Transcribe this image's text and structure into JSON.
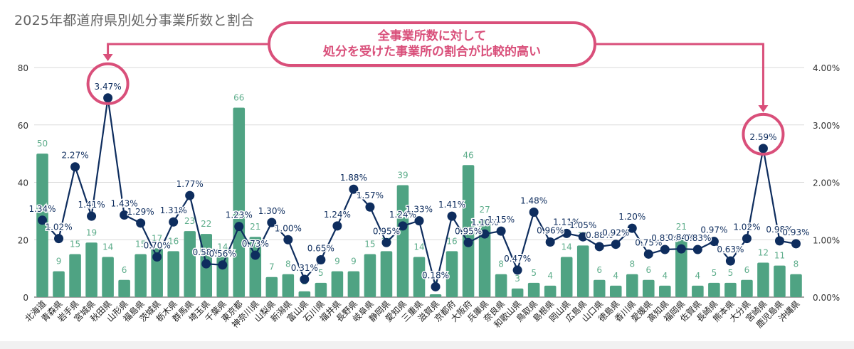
{
  "title": "2025年都道府県別処分事業所数と割合",
  "callout": {
    "line1": "全事業所数に対して",
    "line2": "処分を受けた事業所の割合が比較的高い",
    "color": "#d94f7a"
  },
  "colors": {
    "bar": "#4fa383",
    "bar_label": "#5fae8c",
    "line": "#0e2d5e",
    "highlight": "#d94f7a",
    "grid": "#d9d9d9"
  },
  "chart_data": {
    "type": "bar+line",
    "title": "2025年都道府県別処分事業所数と割合",
    "categories": [
      "北海道",
      "青森県",
      "岩手県",
      "宮城県",
      "秋田県",
      "山形県",
      "福島県",
      "茨城県",
      "栃木県",
      "群馬県",
      "埼玉県",
      "千葉県",
      "東京都",
      "神奈川県",
      "山梨県",
      "新潟県",
      "富山県",
      "石川県",
      "福井県",
      "長野県",
      "岐阜県",
      "静岡県",
      "愛知県",
      "三重県",
      "滋賀県",
      "京都府",
      "大阪府",
      "兵庫県",
      "奈良県",
      "和歌山県",
      "鳥取県",
      "島根県",
      "岡山県",
      "広島県",
      "山口県",
      "徳島県",
      "香川県",
      "愛媛県",
      "高知県",
      "福岡県",
      "佐賀県",
      "長崎県",
      "熊本県",
      "大分県",
      "宮崎県",
      "鹿児島県",
      "沖縄県"
    ],
    "series": [
      {
        "name": "処分事業所数",
        "type": "bar",
        "axis": "left",
        "values": [
          50,
          9,
          15,
          19,
          14,
          6,
          15,
          17,
          16,
          23,
          22,
          14,
          66,
          21,
          7,
          8,
          2,
          5,
          9,
          9,
          15,
          16,
          39,
          14,
          1,
          16,
          46,
          27,
          8,
          3,
          5,
          4,
          14,
          18,
          6,
          4,
          8,
          6,
          4,
          21,
          4,
          5,
          5,
          6,
          12,
          11,
          8
        ]
      },
      {
        "name": "割合",
        "type": "line",
        "axis": "right",
        "values": [
          1.34,
          1.02,
          2.27,
          1.41,
          3.47,
          1.43,
          1.29,
          0.7,
          1.31,
          1.77,
          0.58,
          0.56,
          1.23,
          0.73,
          1.3,
          1.0,
          0.31,
          0.65,
          1.24,
          1.88,
          1.57,
          0.95,
          1.24,
          1.33,
          0.18,
          1.41,
          0.95,
          1.1,
          1.15,
          0.47,
          1.48,
          0.96,
          1.11,
          1.05,
          0.88,
          0.92,
          1.2,
          0.75,
          0.83,
          0.84,
          0.83,
          0.97,
          0.63,
          1.02,
          2.59,
          0.98,
          0.93
        ],
        "labels": [
          "1.34%",
          "1.02%",
          "2.27%",
          "1.41%",
          "3.47%",
          "1.43%",
          "1.29%",
          "0.70%",
          "1.31%",
          "1.77%",
          "0.58%",
          "0.56%",
          "1.23%",
          "0.73%",
          "1.30%",
          "1.00%",
          "0.31%",
          "0.65%",
          "1.24%",
          "1.88%",
          "1.57%",
          "0.95%",
          "1.24%",
          "1.33%",
          "0.18%",
          "1.41%",
          "0.95%",
          "1.10%",
          "1.15%",
          "0.47%",
          "1.48%",
          "0.96%",
          "1.11%",
          "1.05%",
          "0.88%",
          "0.92%",
          "1.20%",
          "0.75%",
          "0.83%",
          "0.84%",
          "0.83%",
          "0.97%",
          "0.63%",
          "1.02%",
          "2.59%",
          "0.98%",
          "0.93%"
        ]
      }
    ],
    "left_axis": {
      "ylim": [
        0,
        80
      ],
      "ticks": [
        "0",
        "20",
        "40",
        "60",
        "80"
      ]
    },
    "right_axis": {
      "ylim": [
        0,
        4
      ],
      "ticks": [
        "0.00%",
        "1.00%",
        "2.00%",
        "3.00%",
        "4.00%"
      ]
    },
    "highlighted": [
      "秋田県",
      "宮崎県"
    ],
    "grid": true,
    "legend": "none"
  }
}
